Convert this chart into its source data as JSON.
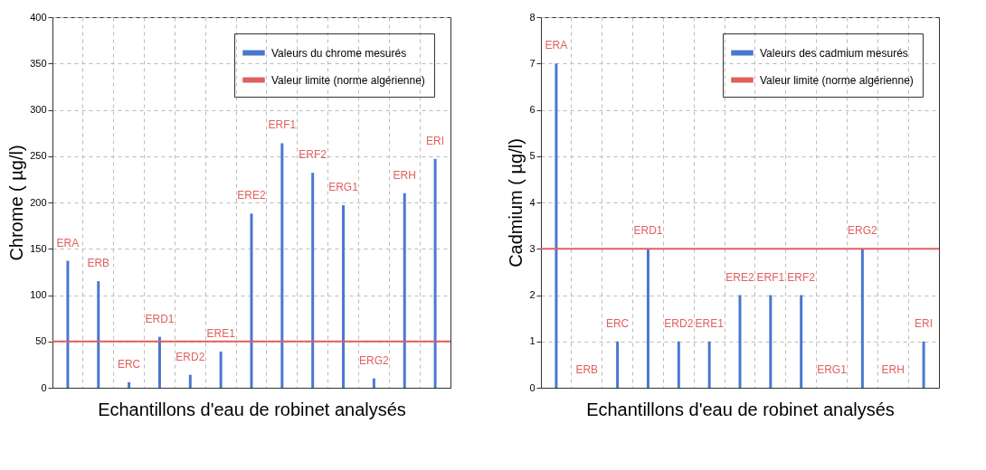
{
  "chart_data": [
    {
      "type": "bar",
      "categories": [
        "ERA",
        "ERB",
        "ERC",
        "ERD1",
        "ERD2",
        "ERE1",
        "ERE2",
        "ERF1",
        "ERF2",
        "ERG1",
        "ERG2",
        "ERH",
        "ERI"
      ],
      "xlabel": "Echantillons d'eau de robinet analysés",
      "ylabel": "Chrome ( µg/l)",
      "ylim": [
        0,
        400
      ],
      "yticks": [
        0,
        50,
        100,
        150,
        200,
        250,
        300,
        350,
        400
      ],
      "grid": true,
      "legend": "top right",
      "series": [
        {
          "name": "Valeurs du chrome mesurés",
          "color": "#4a78d0",
          "values": [
            137,
            115,
            6,
            55,
            14,
            39,
            188,
            264,
            232,
            197,
            10,
            210,
            247
          ]
        }
      ],
      "ref_lines": [
        {
          "axis": "y",
          "value": 50,
          "label": "Valeur limite (norme  algérienne)",
          "color": "#e06060"
        }
      ]
    },
    {
      "type": "bar",
      "categories": [
        "ERA",
        "ERB",
        "ERC",
        "ERD1",
        "ERD2",
        "ERE1",
        "ERE2",
        "ERF1",
        "ERF2",
        "ERG1",
        "ERG2",
        "ERH",
        "ERI"
      ],
      "xlabel": "Echantillons d'eau de robinet analysés",
      "ylabel": "Cadmium ( µg/l)",
      "ylim": [
        0,
        8
      ],
      "yticks": [
        0,
        1,
        2,
        3,
        4,
        5,
        6,
        7,
        8
      ],
      "grid": true,
      "legend": "top right",
      "series": [
        {
          "name": "Valeurs des cadmium mesurés",
          "color": "#4a78d0",
          "values": [
            7,
            0,
            1,
            3,
            1,
            1,
            2,
            2,
            2,
            0,
            3,
            0,
            1
          ]
        }
      ],
      "ref_lines": [
        {
          "axis": "y",
          "value": 3,
          "label": "Valeur limite (norme  algérienne)",
          "color": "#e06060"
        }
      ]
    }
  ]
}
